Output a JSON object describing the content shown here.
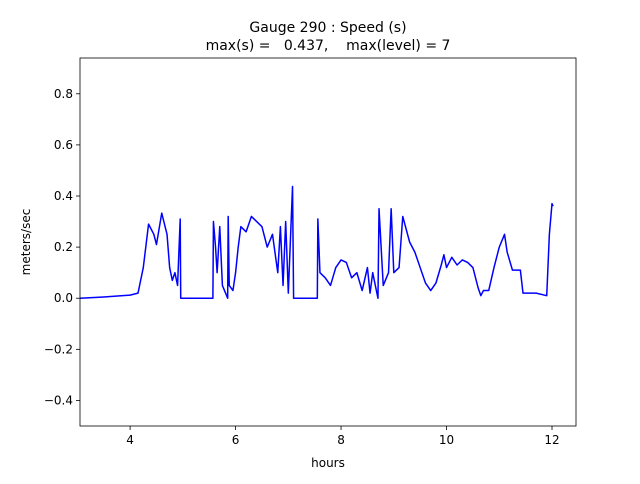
{
  "chart_data": {
    "type": "line",
    "title": "Gauge 290 : Speed (s)",
    "subtitle": "max(s) =   0.437,    max(level) = 7",
    "xlabel": "hours",
    "ylabel": "meters/sec",
    "xlim": [
      3.05,
      12.455
    ],
    "ylim": [
      -0.5,
      0.94
    ],
    "xticks": [
      4,
      6,
      8,
      10,
      12
    ],
    "yticks": [
      {
        "value": -0.4,
        "label": "−0.4"
      },
      {
        "value": -0.2,
        "label": "−0.2"
      },
      {
        "value": 0,
        "label": "0.0"
      },
      0.2,
      0.4,
      0.6,
      0.8
    ],
    "grid": false,
    "series": [
      {
        "name": "s",
        "color": "#0000ff",
        "x": [
          3.05,
          3.5,
          4.0,
          4.15,
          4.25,
          4.35,
          4.45,
          4.5,
          4.6,
          4.7,
          4.75,
          4.8,
          4.85,
          4.9,
          4.95,
          4.96,
          5.57,
          5.58,
          5.62,
          5.65,
          5.7,
          5.75,
          5.85,
          5.86,
          5.88,
          5.95,
          6.0,
          6.05,
          6.1,
          6.2,
          6.3,
          6.4,
          6.5,
          6.6,
          6.7,
          6.8,
          6.85,
          6.9,
          6.95,
          7.0,
          7.08,
          7.1,
          7.55,
          7.56,
          7.6,
          7.7,
          7.8,
          7.9,
          8.0,
          8.1,
          8.2,
          8.3,
          8.4,
          8.5,
          8.55,
          8.6,
          8.7,
          8.72,
          8.8,
          8.9,
          8.95,
          9.0,
          9.1,
          9.17,
          9.3,
          9.4,
          9.5,
          9.6,
          9.7,
          9.8,
          9.9,
          9.95,
          10.0,
          10.1,
          10.2,
          10.3,
          10.4,
          10.5,
          10.6,
          10.65,
          10.7,
          10.8,
          10.9,
          11.0,
          11.1,
          11.15,
          11.25,
          11.4,
          11.45,
          11.55,
          11.7,
          11.9,
          11.95,
          12.0,
          12.02
        ],
        "values": [
          0.0,
          0.005,
          0.012,
          0.02,
          0.12,
          0.29,
          0.25,
          0.21,
          0.333,
          0.25,
          0.12,
          0.07,
          0.1,
          0.05,
          0.31,
          0.0,
          0.0,
          0.3,
          0.2,
          0.1,
          0.28,
          0.05,
          0.0,
          0.32,
          0.05,
          0.03,
          0.1,
          0.2,
          0.28,
          0.26,
          0.32,
          0.3,
          0.28,
          0.2,
          0.25,
          0.1,
          0.28,
          0.05,
          0.3,
          0.02,
          0.437,
          0.0,
          0.0,
          0.31,
          0.1,
          0.08,
          0.05,
          0.12,
          0.15,
          0.14,
          0.08,
          0.1,
          0.03,
          0.12,
          0.02,
          0.1,
          0.0,
          0.35,
          0.05,
          0.1,
          0.35,
          0.1,
          0.12,
          0.32,
          0.22,
          0.18,
          0.12,
          0.06,
          0.03,
          0.06,
          0.13,
          0.17,
          0.12,
          0.16,
          0.13,
          0.15,
          0.14,
          0.12,
          0.04,
          0.01,
          0.03,
          0.03,
          0.12,
          0.2,
          0.25,
          0.18,
          0.11,
          0.11,
          0.02,
          0.02,
          0.02,
          0.01,
          0.25,
          0.37,
          0.36
        ]
      }
    ]
  }
}
